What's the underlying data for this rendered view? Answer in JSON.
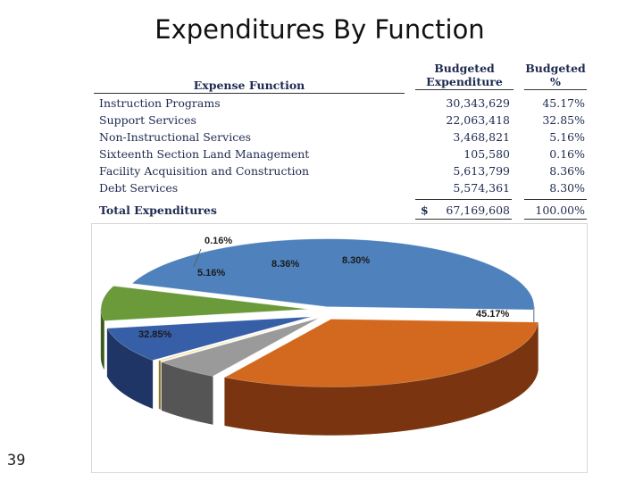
{
  "slide": {
    "title": "Expenditures By Function",
    "page_number": "39"
  },
  "table": {
    "headers": {
      "function": "Expense Function",
      "expenditure_line1": "Budgeted",
      "expenditure_line2": "Expenditure",
      "percent_line1": "Budgeted",
      "percent_line2": "%"
    },
    "rows": [
      {
        "function": "Instruction Programs",
        "expenditure": "30,343,629",
        "percent": "45.17%"
      },
      {
        "function": "Support Services",
        "expenditure": "22,063,418",
        "percent": "32.85%"
      },
      {
        "function": "Non-Instructional Services",
        "expenditure": "3,468,821",
        "percent": "5.16%"
      },
      {
        "function": "Sixteenth Section Land Management",
        "expenditure": "105,580",
        "percent": "0.16%"
      },
      {
        "function": "Facility Acquisition and Construction",
        "expenditure": "5,613,799",
        "percent": "8.36%"
      },
      {
        "function": "Debt Services",
        "expenditure": "5,574,361",
        "percent": "8.30%"
      }
    ],
    "total": {
      "label": "Total Expenditures",
      "currency": "$",
      "expenditure": "67,169,608",
      "percent": "100.00%"
    }
  },
  "chart_data": {
    "type": "pie",
    "title": "",
    "style": "3d-exploded",
    "start_angle_deg": 200,
    "labels": [
      "Instruction Programs",
      "Support Services",
      "Non-Instructional Services",
      "Sixteenth Section Land Management",
      "Facility Acquisition and Construction",
      "Debt Services"
    ],
    "values": [
      45.17,
      32.85,
      5.16,
      0.16,
      8.36,
      8.3
    ],
    "data_labels": [
      "45.17%",
      "32.85%",
      "5.16%",
      "0.16%",
      "8.36%",
      "8.30%"
    ],
    "colors": [
      "#4f81bd",
      "#d2691e",
      "#9a9a9a",
      "#f0c040",
      "#365fa8",
      "#6a9a3a"
    ],
    "side_colors": [
      "#1f3450",
      "#7a3510",
      "#555555",
      "#8a7020",
      "#1e3566",
      "#3a5a1c"
    ],
    "legend": "none"
  }
}
